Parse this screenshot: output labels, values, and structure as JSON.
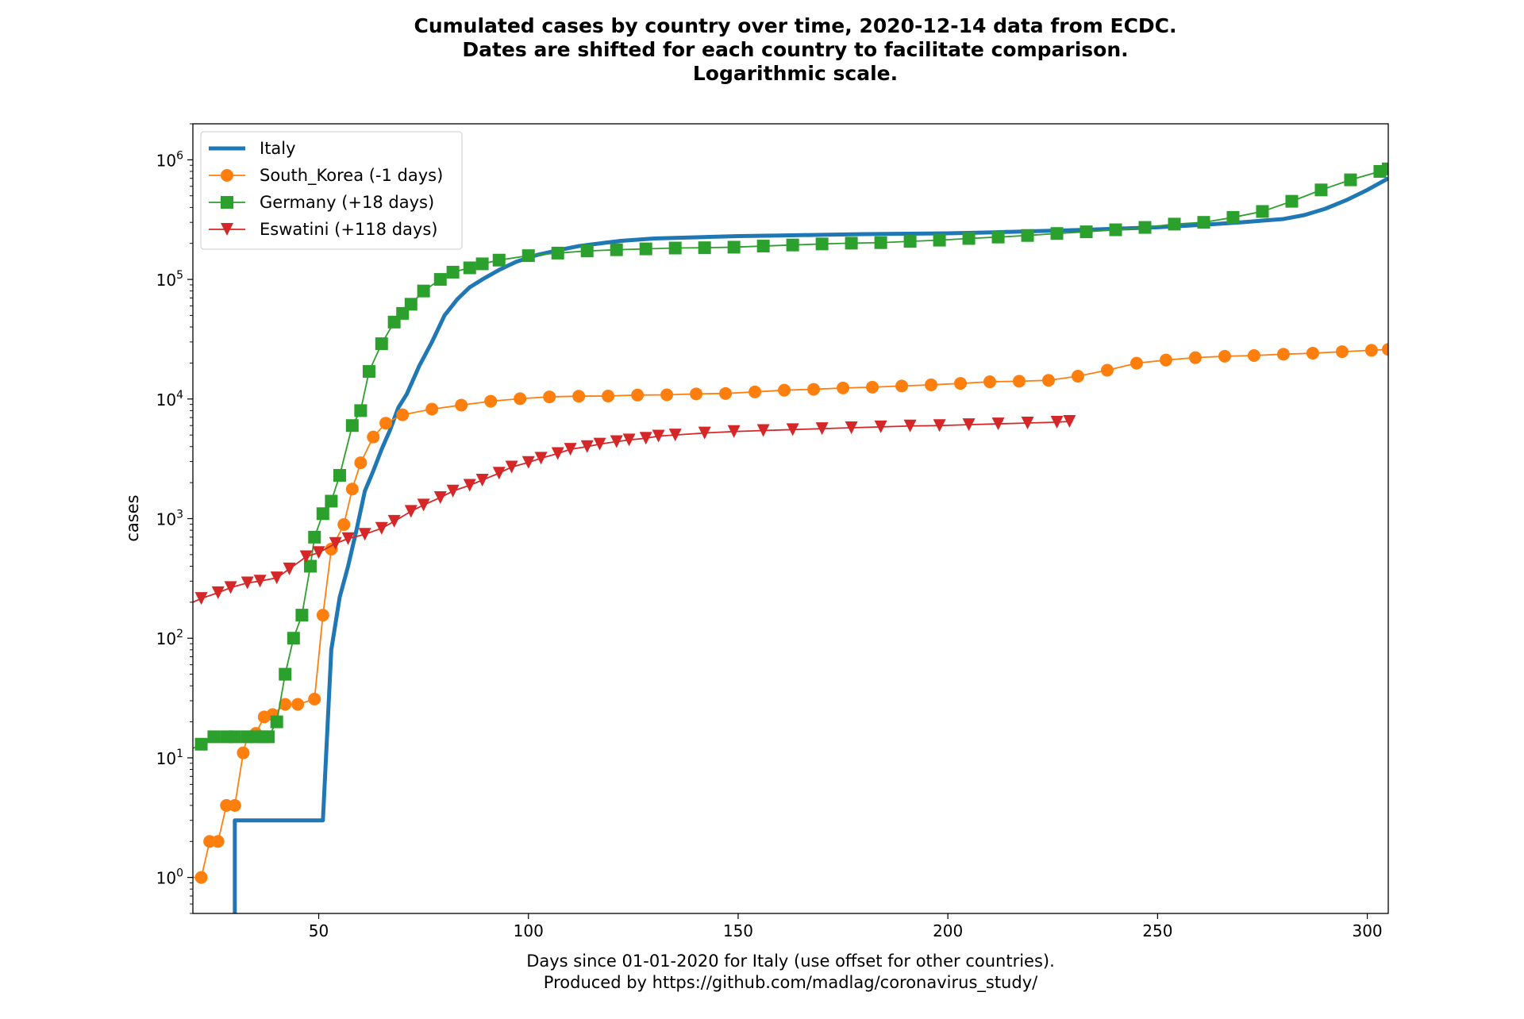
{
  "chart_data": {
    "type": "line",
    "title": "Cumulated cases by country over time, 2020-12-14 data from ECDC.",
    "subtitle": [
      "Dates are shifted for each country to facilitate comparison.",
      "Logarithmic scale."
    ],
    "xlabel": "Days since 01-01-2020 for Italy (use offset for other countries).",
    "xlabel_line2": "Produced by https://github.com/madlag/coronavirus_study/",
    "ylabel": "cases",
    "y_scale": "log",
    "xlim": [
      20,
      305
    ],
    "ylim": [
      0.5,
      2000000
    ],
    "x_ticks": [
      50,
      100,
      150,
      200,
      250,
      300
    ],
    "y_ticks": [
      {
        "value": 1,
        "base": "10",
        "exp": "0"
      },
      {
        "value": 10,
        "base": "10",
        "exp": "1"
      },
      {
        "value": 100,
        "base": "10",
        "exp": "2"
      },
      {
        "value": 1000,
        "base": "10",
        "exp": "3"
      },
      {
        "value": 10000,
        "base": "10",
        "exp": "4"
      },
      {
        "value": 100000,
        "base": "10",
        "exp": "5"
      },
      {
        "value": 1000000,
        "base": "10",
        "exp": "6"
      }
    ],
    "grid": false,
    "legend_position": "top-left",
    "series": [
      {
        "name": "Italy",
        "color": "#1f77b4",
        "marker": "none",
        "x": [
          30,
          30,
          51,
          51,
          53,
          55,
          57,
          59,
          61,
          63,
          65,
          67,
          69,
          71,
          74,
          77,
          80,
          83,
          86,
          89,
          93,
          97,
          102,
          107,
          112,
          117,
          122,
          130,
          140,
          150,
          160,
          170,
          180,
          190,
          200,
          210,
          220,
          230,
          240,
          250,
          260,
          270,
          275,
          280,
          285,
          290,
          295,
          300,
          305
        ],
        "y": [
          0.5,
          3,
          3,
          3,
          80,
          220,
          400,
          800,
          1700,
          2500,
          3800,
          5500,
          8500,
          11000,
          19000,
          30000,
          50000,
          68000,
          86000,
          100000,
          120000,
          140000,
          160000,
          175000,
          190000,
          200000,
          210000,
          220000,
          225000,
          230000,
          233000,
          236000,
          239000,
          241000,
          243000,
          247000,
          253000,
          258000,
          265000,
          273000,
          285000,
          300000,
          310000,
          320000,
          345000,
          390000,
          460000,
          560000,
          700000
        ]
      },
      {
        "name": "South_Korea (-1 days)",
        "color": "#ff7f0e",
        "marker": "circle",
        "x": [
          20,
          22,
          24,
          26,
          28,
          30,
          32,
          33,
          35,
          37,
          39,
          42,
          45,
          49,
          51,
          53,
          56,
          58,
          60,
          63,
          66,
          70,
          77,
          84,
          91,
          98,
          105,
          112,
          119,
          126,
          133,
          140,
          147,
          154,
          161,
          168,
          175,
          182,
          189,
          196,
          203,
          210,
          217,
          224,
          231,
          238,
          245,
          252,
          259,
          266,
          273,
          280,
          287,
          294,
          301,
          305
        ],
        "y": [
          1,
          1,
          2,
          2,
          4,
          4,
          11,
          15,
          16,
          22,
          23,
          28,
          28,
          31,
          156,
          556,
          893,
          1766,
          2931,
          4812,
          6284,
          7382,
          8236,
          8897,
          9583,
          10062,
          10423,
          10564,
          10591,
          10793,
          10840,
          11037,
          11122,
          11468,
          11852,
          12051,
          12373,
          12563,
          12850,
          13137,
          13512,
          13938,
          14092,
          14336,
          15515,
          17399,
          19947,
          21177,
          22176,
          22783,
          23106,
          23699,
          24164,
          24889,
          25543,
          26000
        ]
      },
      {
        "name": "Germany (+18 days)",
        "color": "#2ca02c",
        "marker": "square",
        "x": [
          20,
          22,
          25,
          28,
          30,
          33,
          35,
          37,
          38,
          40,
          42,
          44,
          46,
          48,
          49,
          51,
          53,
          55,
          58,
          60,
          62,
          65,
          68,
          70,
          72,
          75,
          79,
          82,
          86,
          89,
          93,
          100,
          107,
          114,
          121,
          128,
          135,
          142,
          149,
          156,
          163,
          170,
          177,
          184,
          191,
          198,
          205,
          212,
          219,
          226,
          233,
          240,
          247,
          254,
          261,
          268,
          275,
          282,
          289,
          296,
          303,
          305
        ],
        "y": [
          12,
          13,
          15,
          15,
          15,
          15,
          15,
          15,
          15,
          20,
          50,
          100,
          156,
          400,
          700,
          1100,
          1400,
          2300,
          6000,
          8000,
          17000,
          29000,
          44000,
          52000,
          62000,
          80000,
          100000,
          115000,
          125000,
          135000,
          145000,
          158000,
          166000,
          173000,
          177000,
          180000,
          183000,
          184000,
          186000,
          190000,
          194000,
          198000,
          201000,
          203000,
          208000,
          213000,
          220000,
          226000,
          233000,
          242000,
          250000,
          260000,
          272000,
          290000,
          300000,
          330000,
          370000,
          450000,
          560000,
          680000,
          800000,
          840000
        ]
      },
      {
        "name": "Eswatini (+118 days)",
        "color": "#d62728",
        "marker": "triangle_down",
        "x": [
          20,
          22,
          26,
          29,
          33,
          36,
          40,
          43,
          47,
          50,
          54,
          57,
          61,
          65,
          68,
          72,
          75,
          79,
          82,
          86,
          89,
          93,
          96,
          100,
          103,
          107,
          110,
          114,
          117,
          121,
          124,
          128,
          131,
          135,
          142,
          149,
          156,
          163,
          170,
          177,
          184,
          191,
          198,
          205,
          212,
          219,
          226,
          229
        ],
        "y": [
          200,
          215,
          240,
          265,
          290,
          300,
          320,
          380,
          480,
          520,
          620,
          680,
          740,
          830,
          950,
          1150,
          1300,
          1500,
          1700,
          1900,
          2100,
          2400,
          2700,
          2950,
          3200,
          3500,
          3800,
          4000,
          4200,
          4400,
          4550,
          4700,
          4900,
          5000,
          5200,
          5350,
          5450,
          5550,
          5650,
          5750,
          5850,
          5950,
          6000,
          6100,
          6200,
          6300,
          6400,
          6500
        ]
      }
    ]
  }
}
